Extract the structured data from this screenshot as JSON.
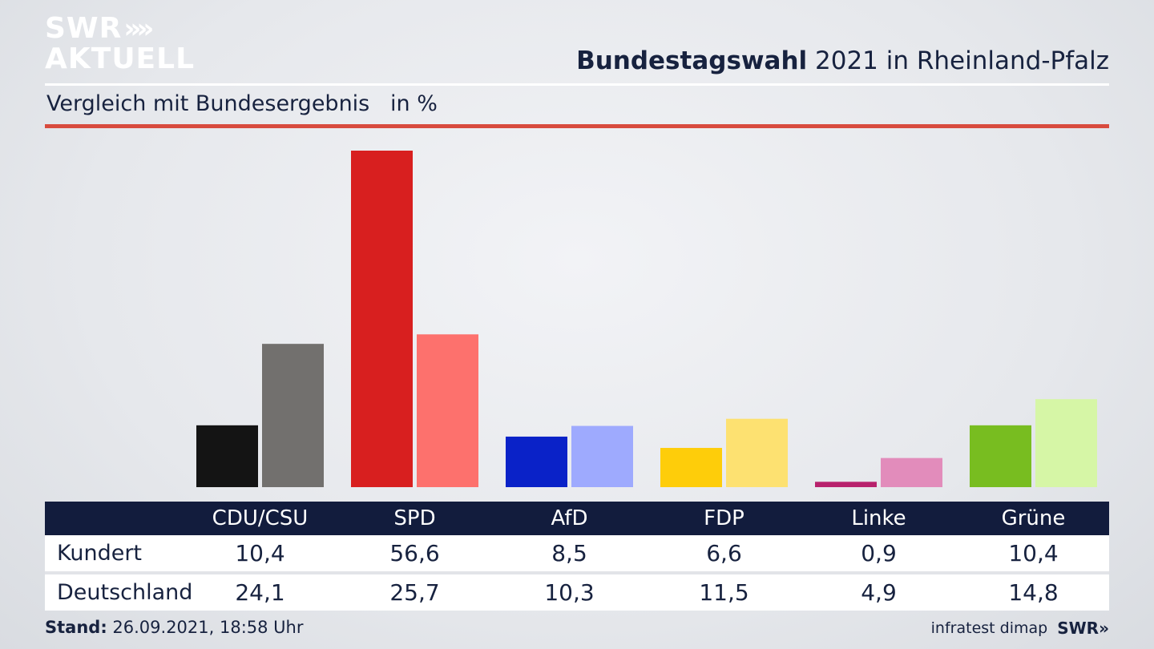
{
  "brand": {
    "logo_line1": "SWR",
    "logo_line2": "AKTUELL",
    "logo_chevrons": "»",
    "footer_logo": "SWR»",
    "text_color": "#17223f",
    "table_header_color": "#121c3d",
    "accent_rule_color": "#d84b3e"
  },
  "header": {
    "title_bold": "Bundestagswahl",
    "title_rest": " 2021 in Rheinland-Pfalz",
    "subtitle": "Vergleich mit Bundesergebnis   in %"
  },
  "chart_data": {
    "type": "bar",
    "categories": [
      "CDU/CSU",
      "SPD",
      "AfD",
      "FDP",
      "Linke",
      "Grüne"
    ],
    "series": [
      {
        "name": "Kundert",
        "values": [
          10.4,
          56.6,
          8.5,
          6.6,
          0.9,
          10.4
        ],
        "labels": [
          "10,4",
          "56,6",
          "8,5",
          "6,6",
          "0,9",
          "10,4"
        ],
        "colors": [
          "#141414",
          "#d81f1f",
          "#0a22c8",
          "#fecd0a",
          "#b8226d",
          "#78bd20"
        ]
      },
      {
        "name": "Deutschland",
        "values": [
          24.1,
          25.7,
          10.3,
          11.5,
          4.9,
          14.8
        ],
        "labels": [
          "24,1",
          "25,7",
          "10,3",
          "11,5",
          "4,9",
          "14,8"
        ],
        "colors": [
          "#72706e",
          "#fd716d",
          "#9eaafe",
          "#fde171",
          "#e28cbb",
          "#d6f6a6"
        ]
      }
    ],
    "title": "Bundestagswahl 2021 in Rheinland-Pfalz",
    "subtitle": "Vergleich mit Bundesergebnis in %",
    "ylim": [
      0,
      56.6
    ],
    "grid": false,
    "legend": "table-below"
  },
  "footer": {
    "stand_label": "Stand:",
    "stand_value": " 26.09.2021, 18:58 Uhr",
    "source": "infratest dimap"
  }
}
